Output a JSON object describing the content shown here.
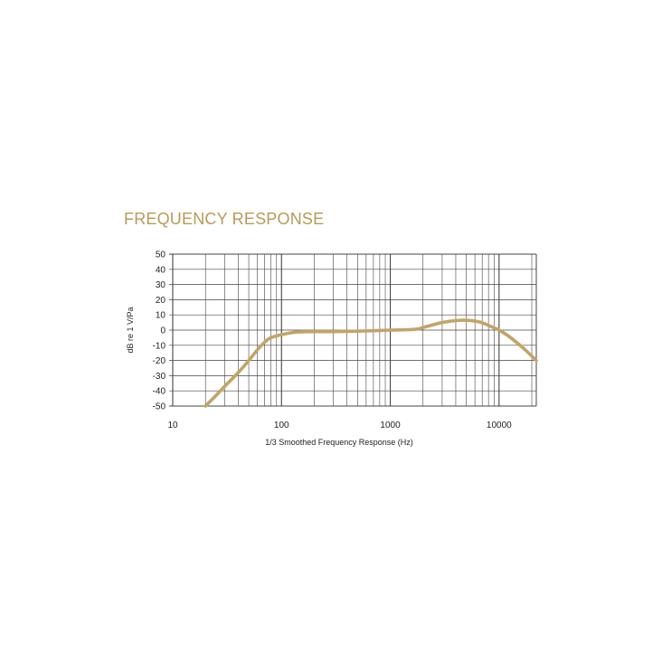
{
  "colors": {
    "accent": "#b99a55",
    "curve": "#c2a468",
    "grid": "#444444",
    "text": "#222222"
  },
  "chart_data": {
    "type": "line",
    "title": "FREQUENCY RESPONSE",
    "xlabel": "1/3 Smoothed Frequency Response (Hz)",
    "ylabel": "dB re 1 V/Pa",
    "xscale": "log",
    "xlim": [
      10,
      22000
    ],
    "ylim": [
      -50,
      50
    ],
    "xticks": [
      10,
      100,
      1000,
      10000
    ],
    "xtick_labels": [
      "10",
      "100",
      "1000",
      "10000"
    ],
    "yticks": [
      50,
      40,
      30,
      20,
      10,
      0,
      -10,
      -20,
      -30,
      -40,
      -50
    ],
    "ytick_labels": [
      "50",
      "40",
      "30",
      "20",
      "10",
      "0",
      "-10",
      "-20",
      "-30",
      "-40",
      "-50"
    ],
    "grid": true,
    "legend": "none",
    "series": [
      {
        "x": [
          20,
          25,
          30,
          40,
          50,
          60,
          70,
          80,
          100,
          130,
          150,
          200,
          300,
          500,
          700,
          1000,
          1500,
          1800,
          2200,
          2800,
          3500,
          4500,
          5500,
          6500,
          7500,
          9000,
          10000,
          12000,
          15000,
          18000,
          22000
        ],
        "y": [
          -50,
          -43,
          -37,
          -28,
          -20,
          -13,
          -8,
          -5,
          -3,
          -1.5,
          -1.2,
          -1,
          -1,
          -0.7,
          -0.4,
          0,
          0.3,
          0.8,
          2.5,
          4.5,
          5.8,
          6.5,
          6.3,
          5.5,
          4,
          1.5,
          0,
          -3.5,
          -9,
          -14,
          -20
        ]
      }
    ]
  }
}
